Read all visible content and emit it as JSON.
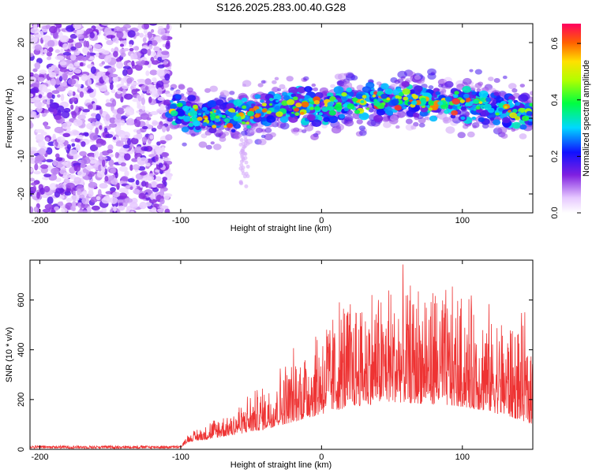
{
  "title": "S126.2025.283.00.40.G28",
  "chart_data": [
    {
      "type": "heatmap",
      "xlabel": "Height of straight line (km)",
      "ylabel": "Frequency (Hz)",
      "xlim": [
        -207,
        150
      ],
      "ylim": [
        -25,
        25
      ],
      "xticks": [
        -200,
        -100,
        0,
        100
      ],
      "yticks": [
        -20,
        -10,
        0,
        10,
        20
      ],
      "colorbar": {
        "label": "Normalized spectral amplitude",
        "range": [
          0.0,
          0.67
        ],
        "ticks": [
          0.0,
          0.2,
          0.4,
          0.6
        ],
        "tick_labels": [
          "0.0",
          "0.2",
          "0.4",
          "0.6"
        ]
      },
      "noise_region_x": [
        -207,
        -108
      ],
      "signal_band": {
        "center_hz": [
          [
            -108,
            3
          ],
          [
            -95,
            1
          ],
          [
            -80,
            0
          ],
          [
            -60,
            0.5
          ],
          [
            -40,
            2
          ],
          [
            -20,
            3
          ],
          [
            0,
            3.5
          ],
          [
            20,
            4
          ],
          [
            40,
            4.5
          ],
          [
            60,
            5
          ],
          [
            80,
            4.5
          ],
          [
            100,
            4
          ],
          [
            120,
            3
          ],
          [
            140,
            2
          ],
          [
            150,
            1
          ]
        ],
        "width_hz": 5
      }
    },
    {
      "type": "line",
      "xlabel": "Height of straight line (km)",
      "ylabel": "SNR (10 * v/v)",
      "xlim": [
        -207,
        150
      ],
      "ylim": [
        0,
        760
      ],
      "xticks": [
        -200,
        -100,
        0,
        100
      ],
      "yticks": [
        0,
        200,
        400,
        600
      ],
      "color": "#ee3333",
      "envelope": [
        [
          -207,
          15
        ],
        [
          -100,
          15
        ],
        [
          -95,
          60
        ],
        [
          -80,
          110
        ],
        [
          -60,
          180
        ],
        [
          -40,
          260
        ],
        [
          -20,
          380
        ],
        [
          0,
          520
        ],
        [
          20,
          620
        ],
        [
          50,
          660
        ],
        [
          80,
          640
        ],
        [
          100,
          600
        ],
        [
          120,
          540
        ],
        [
          140,
          500
        ],
        [
          150,
          480
        ]
      ],
      "baseline": [
        [
          -207,
          5
        ],
        [
          -100,
          5
        ],
        [
          -95,
          30
        ],
        [
          -80,
          40
        ],
        [
          -60,
          60
        ],
        [
          -40,
          80
        ],
        [
          -20,
          110
        ],
        [
          0,
          140
        ],
        [
          20,
          170
        ],
        [
          50,
          190
        ],
        [
          80,
          180
        ],
        [
          100,
          170
        ],
        [
          120,
          150
        ],
        [
          140,
          120
        ],
        [
          150,
          100
        ]
      ]
    }
  ]
}
